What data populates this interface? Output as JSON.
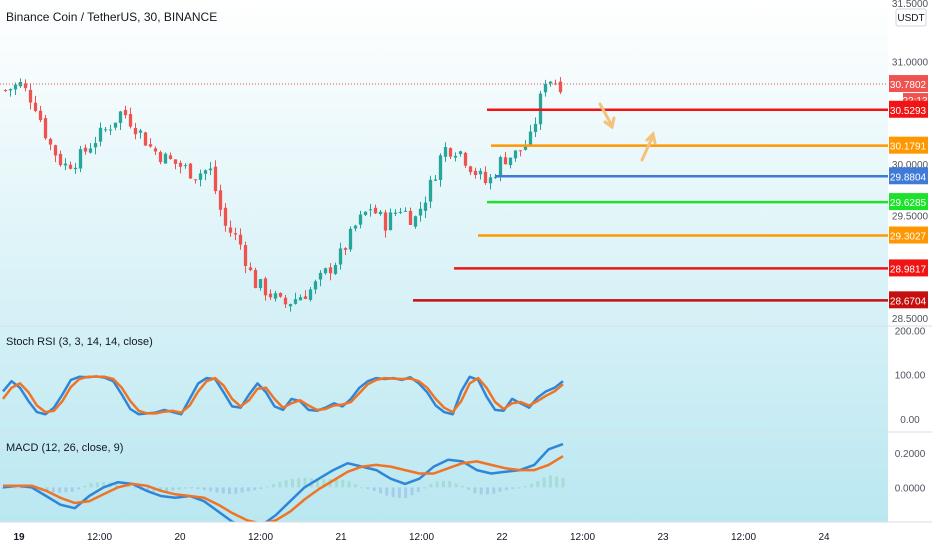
{
  "header": {
    "symbol_title": "Binance Coin / TetherUS, 30, BINANCE",
    "currency": "USDT",
    "top_price_label": "31.5000"
  },
  "chart_data": [
    {
      "type": "candlestick",
      "title": "Binance Coin / TetherUS, 30, BINANCE",
      "ylabel": "USDT",
      "ylim": [
        28.42,
        31.6
      ],
      "y_ticks": [
        "31.0000",
        "30.5000",
        "30.0000",
        "29.5000",
        "28.5000"
      ],
      "x_ticks": [
        "19",
        "12:00",
        "20",
        "12:00",
        "21",
        "12:00",
        "22",
        "12:00",
        "23",
        "12:00",
        "24"
      ],
      "last_price": "30.7802",
      "countdown": "22:13",
      "up_color": "#26a69a",
      "down_color": "#ef5350",
      "approx_close_path": [
        [
          "2021-02-19 00:00",
          30.72
        ],
        [
          "2021-02-19 03:00",
          30.78
        ],
        [
          "2021-02-19 06:00",
          30.6
        ],
        [
          "2021-02-19 09:00",
          30.2
        ],
        [
          "2021-02-19 12:00",
          29.98
        ],
        [
          "2021-02-19 15:00",
          30.05
        ],
        [
          "2021-02-19 18:00",
          30.22
        ],
        [
          "2021-02-19 21:00",
          30.35
        ],
        [
          "2021-02-20 00:00",
          30.52
        ],
        [
          "2021-02-20 03:00",
          30.35
        ],
        [
          "2021-02-20 06:00",
          30.15
        ],
        [
          "2021-02-20 09:00",
          30.05
        ],
        [
          "2021-02-20 12:00",
          29.98
        ],
        [
          "2021-02-20 15:00",
          29.9
        ],
        [
          "2021-02-20 18:00",
          29.95
        ],
        [
          "2021-02-20 21:00",
          29.4
        ],
        [
          "2021-02-21 00:00",
          29.25
        ],
        [
          "2021-02-21 03:00",
          28.85
        ],
        [
          "2021-02-21 06:00",
          28.75
        ],
        [
          "2021-02-21 09:00",
          28.62
        ],
        [
          "2021-02-21 12:00",
          28.7
        ],
        [
          "2021-02-21 15:00",
          28.78
        ],
        [
          "2021-02-21 18:00",
          28.95
        ],
        [
          "2021-02-21 21:00",
          29.12
        ],
        [
          "2021-02-22 00:00",
          29.4
        ],
        [
          "2021-02-22 03:00",
          29.58
        ],
        [
          "2021-02-22 06:00",
          29.42
        ],
        [
          "2021-02-22 09:00",
          29.58
        ],
        [
          "2021-02-22 12:00",
          29.45
        ],
        [
          "2021-02-22 15:00",
          29.75
        ],
        [
          "2021-02-22 18:00",
          30.15
        ],
        [
          "2021-02-22 21:00",
          30.15
        ],
        [
          "2021-02-23 00:00",
          29.95
        ],
        [
          "2021-02-23 03:00",
          29.8
        ],
        [
          "2021-02-23 06:00",
          30.05
        ],
        [
          "2021-02-23 09:00",
          30.1
        ],
        [
          "2021-02-23 12:00",
          30.25
        ],
        [
          "2021-02-23 15:00",
          30.85
        ],
        [
          "2021-02-23 18:00",
          30.78
        ]
      ],
      "levels": [
        {
          "price": 30.5293,
          "label": "30.5293",
          "color": "#f01414"
        },
        {
          "price": 30.1791,
          "label": "30.1791",
          "color": "#ff9800"
        },
        {
          "price": 29.8804,
          "label": "29.8804",
          "color": "#3f7bd6"
        },
        {
          "price": 29.6285,
          "label": "29.6285",
          "color": "#1de22a"
        },
        {
          "price": 29.3027,
          "label": "29.3027",
          "color": "#ff9800"
        },
        {
          "price": 28.9817,
          "label": "28.9817",
          "color": "#f01414"
        },
        {
          "price": 28.6704,
          "label": "28.6704",
          "color": "#c51010"
        }
      ],
      "annotations": [
        {
          "type": "arrow",
          "direction": "down",
          "color": "#f5c27a"
        },
        {
          "type": "arrow",
          "direction": "up",
          "color": "#f5c27a"
        }
      ]
    },
    {
      "type": "line",
      "title": "Stoch RSI (3, 3, 14, 14, close)",
      "y_ticks": [
        "200.00",
        "100.00",
        "0.00"
      ],
      "ylim": [
        -30,
        210
      ],
      "series": [
        {
          "color": "#2f86d8",
          "values": [
            62,
            85,
            70,
            40,
            15,
            10,
            25,
            55,
            88,
            95,
            94,
            96,
            93,
            85,
            55,
            22,
            10,
            12,
            14,
            20,
            15,
            10,
            45,
            80,
            92,
            90,
            60,
            28,
            25,
            55,
            80,
            60,
            28,
            20,
            45,
            40,
            20,
            18,
            25,
            35,
            28,
            45,
            70,
            85,
            92,
            90,
            92,
            88,
            94,
            80,
            60,
            30,
            15,
            10,
            62,
            95,
            88,
            50,
            20,
            18,
            45,
            35,
            25,
            48,
            62,
            70,
            85
          ]
        },
        {
          "color": "#ef7425",
          "values": [
            45,
            70,
            80,
            60,
            30,
            15,
            18,
            40,
            72,
            90,
            95,
            95,
            95,
            90,
            70,
            40,
            18,
            12,
            12,
            16,
            18,
            14,
            30,
            62,
            85,
            92,
            75,
            45,
            28,
            42,
            68,
            70,
            45,
            25,
            35,
            42,
            30,
            20,
            22,
            30,
            32,
            38,
            58,
            78,
            88,
            92,
            91,
            90,
            91,
            85,
            70,
            45,
            25,
            15,
            40,
            80,
            92,
            70,
            38,
            22,
            35,
            38,
            30,
            40,
            52,
            62,
            78
          ]
        }
      ]
    },
    {
      "type": "line",
      "title": "MACD (12, 26, close, 9)",
      "y_ticks": [
        "0.2000",
        "0.0000"
      ],
      "ylim": [
        -0.2,
        0.32
      ],
      "series": [
        {
          "color": "#2f86d8",
          "values": [
            0.0,
            0.01,
            0.0,
            -0.05,
            -0.1,
            -0.12,
            -0.05,
            0.0,
            0.03,
            0.02,
            -0.02,
            -0.05,
            -0.06,
            -0.05,
            -0.08,
            -0.14,
            -0.2,
            -0.22,
            -0.22,
            -0.16,
            -0.08,
            0.0,
            0.05,
            0.1,
            0.14,
            0.12,
            0.1,
            0.05,
            0.02,
            0.05,
            0.12,
            0.16,
            0.15,
            0.1,
            0.08,
            0.09,
            0.1,
            0.13,
            0.22,
            0.25
          ]
        },
        {
          "color": "#ef7425",
          "values": [
            0.01,
            0.01,
            0.01,
            -0.02,
            -0.06,
            -0.09,
            -0.08,
            -0.04,
            0.0,
            0.02,
            0.01,
            -0.02,
            -0.04,
            -0.05,
            -0.06,
            -0.1,
            -0.15,
            -0.19,
            -0.21,
            -0.19,
            -0.14,
            -0.07,
            -0.01,
            0.04,
            0.09,
            0.12,
            0.13,
            0.12,
            0.1,
            0.08,
            0.08,
            0.11,
            0.14,
            0.15,
            0.13,
            0.11,
            0.1,
            0.1,
            0.13,
            0.18
          ]
        }
      ]
    }
  ]
}
